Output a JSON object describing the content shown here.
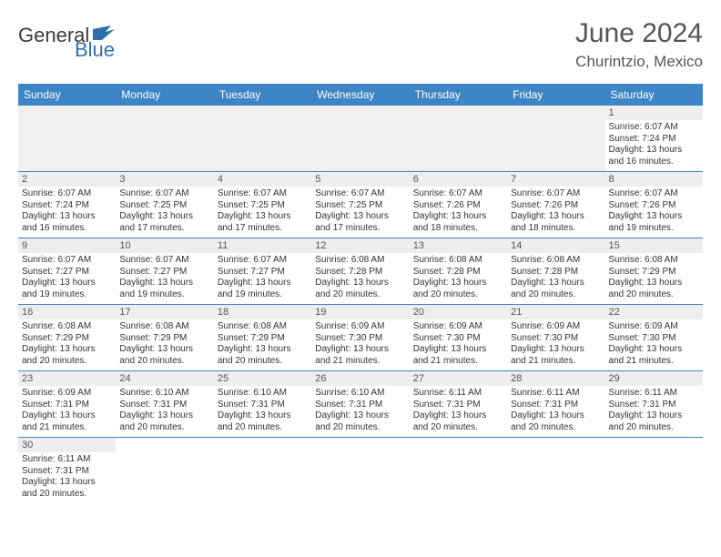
{
  "logo": {
    "word1": "General",
    "word2": "Blue"
  },
  "title": {
    "month": "June 2024",
    "location": "Churintzio, Mexico"
  },
  "calendar": {
    "header_bg": "#3d85c6",
    "header_fg": "#ffffff",
    "daybar_bg": "#eeeeee",
    "row_border": "#3d85c6",
    "blank_bg": "#f0f0f0",
    "days": [
      "Sunday",
      "Monday",
      "Tuesday",
      "Wednesday",
      "Thursday",
      "Friday",
      "Saturday"
    ],
    "weeks": [
      [
        null,
        null,
        null,
        null,
        null,
        null,
        {
          "n": "1",
          "sr": "Sunrise: 6:07 AM",
          "ss": "Sunset: 7:24 PM",
          "dl1": "Daylight: 13 hours",
          "dl2": "and 16 minutes."
        }
      ],
      [
        {
          "n": "2",
          "sr": "Sunrise: 6:07 AM",
          "ss": "Sunset: 7:24 PM",
          "dl1": "Daylight: 13 hours",
          "dl2": "and 16 minutes."
        },
        {
          "n": "3",
          "sr": "Sunrise: 6:07 AM",
          "ss": "Sunset: 7:25 PM",
          "dl1": "Daylight: 13 hours",
          "dl2": "and 17 minutes."
        },
        {
          "n": "4",
          "sr": "Sunrise: 6:07 AM",
          "ss": "Sunset: 7:25 PM",
          "dl1": "Daylight: 13 hours",
          "dl2": "and 17 minutes."
        },
        {
          "n": "5",
          "sr": "Sunrise: 6:07 AM",
          "ss": "Sunset: 7:25 PM",
          "dl1": "Daylight: 13 hours",
          "dl2": "and 17 minutes."
        },
        {
          "n": "6",
          "sr": "Sunrise: 6:07 AM",
          "ss": "Sunset: 7:26 PM",
          "dl1": "Daylight: 13 hours",
          "dl2": "and 18 minutes."
        },
        {
          "n": "7",
          "sr": "Sunrise: 6:07 AM",
          "ss": "Sunset: 7:26 PM",
          "dl1": "Daylight: 13 hours",
          "dl2": "and 18 minutes."
        },
        {
          "n": "8",
          "sr": "Sunrise: 6:07 AM",
          "ss": "Sunset: 7:26 PM",
          "dl1": "Daylight: 13 hours",
          "dl2": "and 19 minutes."
        }
      ],
      [
        {
          "n": "9",
          "sr": "Sunrise: 6:07 AM",
          "ss": "Sunset: 7:27 PM",
          "dl1": "Daylight: 13 hours",
          "dl2": "and 19 minutes."
        },
        {
          "n": "10",
          "sr": "Sunrise: 6:07 AM",
          "ss": "Sunset: 7:27 PM",
          "dl1": "Daylight: 13 hours",
          "dl2": "and 19 minutes."
        },
        {
          "n": "11",
          "sr": "Sunrise: 6:07 AM",
          "ss": "Sunset: 7:27 PM",
          "dl1": "Daylight: 13 hours",
          "dl2": "and 19 minutes."
        },
        {
          "n": "12",
          "sr": "Sunrise: 6:08 AM",
          "ss": "Sunset: 7:28 PM",
          "dl1": "Daylight: 13 hours",
          "dl2": "and 20 minutes."
        },
        {
          "n": "13",
          "sr": "Sunrise: 6:08 AM",
          "ss": "Sunset: 7:28 PM",
          "dl1": "Daylight: 13 hours",
          "dl2": "and 20 minutes."
        },
        {
          "n": "14",
          "sr": "Sunrise: 6:08 AM",
          "ss": "Sunset: 7:28 PM",
          "dl1": "Daylight: 13 hours",
          "dl2": "and 20 minutes."
        },
        {
          "n": "15",
          "sr": "Sunrise: 6:08 AM",
          "ss": "Sunset: 7:29 PM",
          "dl1": "Daylight: 13 hours",
          "dl2": "and 20 minutes."
        }
      ],
      [
        {
          "n": "16",
          "sr": "Sunrise: 6:08 AM",
          "ss": "Sunset: 7:29 PM",
          "dl1": "Daylight: 13 hours",
          "dl2": "and 20 minutes."
        },
        {
          "n": "17",
          "sr": "Sunrise: 6:08 AM",
          "ss": "Sunset: 7:29 PM",
          "dl1": "Daylight: 13 hours",
          "dl2": "and 20 minutes."
        },
        {
          "n": "18",
          "sr": "Sunrise: 6:08 AM",
          "ss": "Sunset: 7:29 PM",
          "dl1": "Daylight: 13 hours",
          "dl2": "and 20 minutes."
        },
        {
          "n": "19",
          "sr": "Sunrise: 6:09 AM",
          "ss": "Sunset: 7:30 PM",
          "dl1": "Daylight: 13 hours",
          "dl2": "and 21 minutes."
        },
        {
          "n": "20",
          "sr": "Sunrise: 6:09 AM",
          "ss": "Sunset: 7:30 PM",
          "dl1": "Daylight: 13 hours",
          "dl2": "and 21 minutes."
        },
        {
          "n": "21",
          "sr": "Sunrise: 6:09 AM",
          "ss": "Sunset: 7:30 PM",
          "dl1": "Daylight: 13 hours",
          "dl2": "and 21 minutes."
        },
        {
          "n": "22",
          "sr": "Sunrise: 6:09 AM",
          "ss": "Sunset: 7:30 PM",
          "dl1": "Daylight: 13 hours",
          "dl2": "and 21 minutes."
        }
      ],
      [
        {
          "n": "23",
          "sr": "Sunrise: 6:09 AM",
          "ss": "Sunset: 7:31 PM",
          "dl1": "Daylight: 13 hours",
          "dl2": "and 21 minutes."
        },
        {
          "n": "24",
          "sr": "Sunrise: 6:10 AM",
          "ss": "Sunset: 7:31 PM",
          "dl1": "Daylight: 13 hours",
          "dl2": "and 20 minutes."
        },
        {
          "n": "25",
          "sr": "Sunrise: 6:10 AM",
          "ss": "Sunset: 7:31 PM",
          "dl1": "Daylight: 13 hours",
          "dl2": "and 20 minutes."
        },
        {
          "n": "26",
          "sr": "Sunrise: 6:10 AM",
          "ss": "Sunset: 7:31 PM",
          "dl1": "Daylight: 13 hours",
          "dl2": "and 20 minutes."
        },
        {
          "n": "27",
          "sr": "Sunrise: 6:11 AM",
          "ss": "Sunset: 7:31 PM",
          "dl1": "Daylight: 13 hours",
          "dl2": "and 20 minutes."
        },
        {
          "n": "28",
          "sr": "Sunrise: 6:11 AM",
          "ss": "Sunset: 7:31 PM",
          "dl1": "Daylight: 13 hours",
          "dl2": "and 20 minutes."
        },
        {
          "n": "29",
          "sr": "Sunrise: 6:11 AM",
          "ss": "Sunset: 7:31 PM",
          "dl1": "Daylight: 13 hours",
          "dl2": "and 20 minutes."
        }
      ],
      [
        {
          "n": "30",
          "sr": "Sunrise: 6:11 AM",
          "ss": "Sunset: 7:31 PM",
          "dl1": "Daylight: 13 hours",
          "dl2": "and 20 minutes."
        },
        null,
        null,
        null,
        null,
        null,
        null
      ]
    ]
  }
}
